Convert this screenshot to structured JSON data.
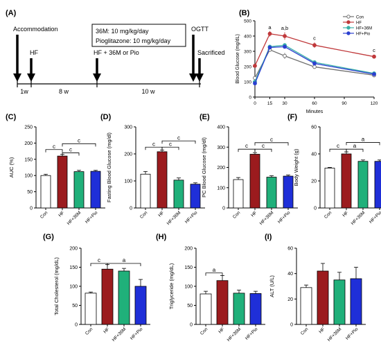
{
  "panel_letters": [
    "(A)",
    "(B)",
    "(C)",
    "(D)",
    "(E)",
    "(F)",
    "(G)",
    "(H)",
    "(I)"
  ],
  "timeline": {
    "events": {
      "accommodation": "Accommodation",
      "hf": "HF",
      "treatment": "HF + 36M or Pio",
      "ogtt": "OGTT",
      "sacrificed": "Sacrificed"
    },
    "dose_box": [
      "36M: 10 mg/kg/day",
      "Pioglitazone: 10 mg/kg/day"
    ],
    "durations": [
      "1w",
      "8 w",
      "10 w"
    ]
  },
  "colors": {
    "Con": "#ffffff",
    "HF": "#9b1b1e",
    "HF+36M": "#20b07a",
    "HF+Pio": "#1f2fd8",
    "ogtt_Con": "#707070",
    "ogtt_HF": "#c0393b",
    "ogtt_HF+36M": "#3ab0a8",
    "ogtt_HF+Pio": "#2b3fd0"
  },
  "chart_data": [
    {
      "id": "B",
      "type": "line",
      "x": [
        0,
        15,
        30,
        60,
        120
      ],
      "xticks": [
        0,
        15,
        30,
        60,
        90,
        120
      ],
      "xlim": [
        0,
        120
      ],
      "xlabel": "Minutes",
      "ylabel": "Blood Glucose (mg/dL)",
      "ylim": [
        0,
        500
      ],
      "yticks": [
        0,
        100,
        200,
        300,
        400,
        500
      ],
      "legend_position": "top-right",
      "series": [
        {
          "name": "Con",
          "values": [
            125,
            310,
            270,
            198,
            143
          ],
          "err": [
            10,
            12,
            20,
            8,
            6
          ],
          "marker": "open-circle"
        },
        {
          "name": "HF",
          "values": [
            205,
            415,
            400,
            340,
            265
          ],
          "err": [
            6,
            18,
            25,
            18,
            10
          ],
          "marker": "filled-circle"
        },
        {
          "name": "HF+36M",
          "values": [
            100,
            330,
            340,
            228,
            155
          ],
          "err": [
            10,
            10,
            10,
            8,
            6
          ],
          "marker": "filled-circle"
        },
        {
          "name": "HF+Pio",
          "values": [
            90,
            325,
            330,
            220,
            150
          ],
          "err": [
            8,
            10,
            10,
            8,
            6
          ],
          "marker": "filled-circle"
        }
      ],
      "annotations": [
        {
          "x": 15,
          "text": "a",
          "value": 455
        },
        {
          "x": 30,
          "text": "a,b",
          "value": 450
        },
        {
          "x": 60,
          "text": "c",
          "value": 385
        },
        {
          "x": 120,
          "text": "c",
          "value": 305
        }
      ]
    },
    {
      "id": "C",
      "type": "bar",
      "categories": [
        "Con",
        "HF",
        "HF+36M",
        "HF+Pio"
      ],
      "values": [
        100,
        160,
        112,
        113
      ],
      "err": [
        4,
        5,
        4,
        3
      ],
      "ylabel": "AUC (%)",
      "ylim": [
        0,
        250
      ],
      "yticks": [
        0,
        50,
        100,
        150,
        200,
        250
      ],
      "brackets": [
        {
          "from": 0,
          "to": 1,
          "text": "c",
          "value": 180
        },
        {
          "from": 1,
          "to": 2,
          "text": "c",
          "value": 170
        },
        {
          "from": 1,
          "to": 3,
          "text": "c",
          "value": 198
        }
      ]
    },
    {
      "id": "D",
      "type": "bar",
      "categories": [
        "Con",
        "HF",
        "HF+36M",
        "HF+Pio"
      ],
      "values": [
        125,
        208,
        103,
        88
      ],
      "err": [
        10,
        6,
        8,
        5
      ],
      "ylabel": "Fasting Blood Glucose (mg/dl)",
      "ylim": [
        0,
        300
      ],
      "yticks": [
        0,
        100,
        200,
        300
      ],
      "brackets": [
        {
          "from": 0,
          "to": 1,
          "text": "c",
          "value": 225
        },
        {
          "from": 1,
          "to": 2,
          "text": "c",
          "value": 225
        },
        {
          "from": 1,
          "to": 3,
          "text": "c",
          "value": 248
        }
      ]
    },
    {
      "id": "E",
      "type": "bar",
      "categories": [
        "Con",
        "HF",
        "HF+36M",
        "HF+Pio"
      ],
      "values": [
        140,
        265,
        152,
        157
      ],
      "err": [
        10,
        8,
        7,
        6
      ],
      "ylabel": "PC Blood Glucose (mg/dl)",
      "ylim": [
        0,
        400
      ],
      "yticks": [
        0,
        100,
        200,
        300,
        400
      ],
      "brackets": [
        {
          "from": 0,
          "to": 1,
          "text": "c",
          "value": 290
        },
        {
          "from": 1,
          "to": 2,
          "text": "c",
          "value": 290
        },
        {
          "from": 1,
          "to": 3,
          "text": "c",
          "value": 322
        }
      ]
    },
    {
      "id": "F",
      "type": "bar",
      "categories": [
        "Con",
        "HF",
        "HF+36M",
        "HF+Pio"
      ],
      "values": [
        29.5,
        40,
        34.5,
        34.5
      ],
      "err": [
        0.5,
        1.5,
        1,
        1
      ],
      "ylabel": "Body Weight (g)",
      "ylim": [
        0,
        60
      ],
      "yticks": [
        0,
        20,
        40,
        60
      ],
      "brackets": [
        {
          "from": 0,
          "to": 1,
          "text": "c",
          "value": 43.5
        },
        {
          "from": 1,
          "to": 2,
          "text": "a",
          "value": 43.5
        },
        {
          "from": 1,
          "to": 3,
          "text": "a",
          "value": 48.5
        }
      ]
    },
    {
      "id": "G",
      "type": "bar",
      "categories": [
        "Con",
        "HF",
        "HF+36M",
        "HF+Pio"
      ],
      "values": [
        82,
        145,
        140,
        100
      ],
      "err": [
        3,
        12,
        7,
        18
      ],
      "ylabel": "Total Cholesterol (mg/dL)",
      "ylim": [
        0,
        200
      ],
      "yticks": [
        0,
        50,
        100,
        150,
        200
      ],
      "brackets": [
        {
          "from": 0,
          "to": 1,
          "text": "c",
          "value": 160
        },
        {
          "from": 1,
          "to": 3,
          "text": "a",
          "value": 160
        }
      ]
    },
    {
      "id": "H",
      "type": "bar",
      "categories": [
        "Con",
        "HF",
        "HF+36M",
        "HF+Pio"
      ],
      "values": [
        80,
        115,
        82,
        81
      ],
      "err": [
        7,
        13,
        8,
        6
      ],
      "ylabel": "Triglyceride (mg/dL)",
      "ylim": [
        0,
        200
      ],
      "yticks": [
        0,
        50,
        100,
        150,
        200
      ],
      "brackets": [
        {
          "from": 0,
          "to": 1,
          "text": "a",
          "value": 135
        }
      ]
    },
    {
      "id": "I",
      "type": "bar",
      "categories": [
        "Con",
        "HF",
        "HF+36M",
        "HF+Pio"
      ],
      "values": [
        29,
        42,
        35,
        36
      ],
      "err": [
        2,
        6,
        6,
        9
      ],
      "ylabel": "ALT (U/L)",
      "ylim": [
        0,
        60
      ],
      "yticks": [
        0,
        20,
        40,
        60
      ],
      "brackets": []
    }
  ]
}
